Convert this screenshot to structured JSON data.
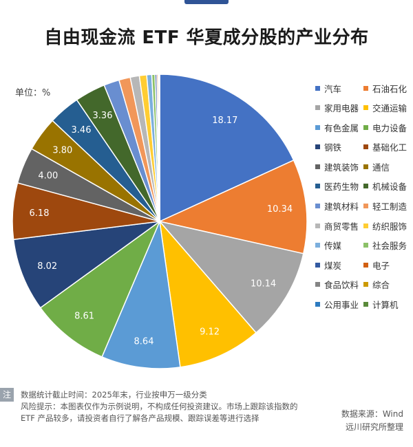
{
  "title": "自由现金流 ETF 华夏成分股的产业分布",
  "unit_label": "单位：%",
  "note_marker": "注",
  "notes": [
    "数据统计截止时间：2025年末，行业按申万一级分类",
    "风险提示：本图表仅作为示例说明，不构成任何投资建议。市场上跟踪该指数的",
    "ETF 产品较多，请投资者自行了解各产品规模、跟踪误差等进行选择"
  ],
  "source": [
    "数据来源：Wind",
    "远川研究所整理"
  ],
  "chart_data": {
    "type": "pie",
    "title": "自由现金流 ETF 华夏成分股的产业分布",
    "unit": "单位：%",
    "legend_position": "right",
    "series": [
      {
        "name": "汽车",
        "value": 18.17,
        "color": "#4472c4",
        "label": "18.17"
      },
      {
        "name": "石油石化",
        "value": 10.34,
        "color": "#ed7d31",
        "label": "10.34"
      },
      {
        "name": "家用电器",
        "value": 10.14,
        "color": "#a5a5a5",
        "label": "10.14"
      },
      {
        "name": "交通运输",
        "value": 9.12,
        "color": "#ffc000",
        "label": "9.12"
      },
      {
        "name": "有色金属",
        "value": 8.64,
        "color": "#5b9bd5",
        "label": "8.64"
      },
      {
        "name": "电力设备",
        "value": 8.61,
        "color": "#70ad47",
        "label": "8.61"
      },
      {
        "name": "钢铁",
        "value": 8.02,
        "color": "#264478",
        "label": "8.02"
      },
      {
        "name": "基础化工",
        "value": 6.18,
        "color": "#9e480e",
        "label": "6.18"
      },
      {
        "name": "建筑装饰",
        "value": 4.0,
        "color": "#636363",
        "label": "4.00"
      },
      {
        "name": "通信",
        "value": 3.8,
        "color": "#997300",
        "label": "3.80"
      },
      {
        "name": "医药生物",
        "value": 3.46,
        "color": "#255e91",
        "label": "3.46"
      },
      {
        "name": "机械设备",
        "value": 3.36,
        "color": "#43682b",
        "label": "3.36"
      },
      {
        "name": "建筑材料",
        "value": 1.7,
        "color": "#698ed0",
        "label": ""
      },
      {
        "name": "轻工制造",
        "value": 1.25,
        "color": "#f1975a",
        "label": ""
      },
      {
        "name": "商贸零售",
        "value": 1.0,
        "color": "#b7b7b7",
        "label": ""
      },
      {
        "name": "纺织服饰",
        "value": 0.8,
        "color": "#ffcd33",
        "label": ""
      },
      {
        "name": "传媒",
        "value": 0.55,
        "color": "#7cafdd",
        "label": ""
      },
      {
        "name": "社会服务",
        "value": 0.35,
        "color": "#8cc168",
        "label": ""
      },
      {
        "name": "煤炭",
        "value": 0.2,
        "color": "#335aa1",
        "label": ""
      },
      {
        "name": "电子",
        "value": 0.15,
        "color": "#d26012",
        "label": ""
      },
      {
        "name": "食品饮料",
        "value": 0.08,
        "color": "#848484",
        "label": ""
      },
      {
        "name": "综合",
        "value": 0.05,
        "color": "#cc9a00",
        "label": ""
      },
      {
        "name": "公用事业",
        "value": 0.02,
        "color": "#2d7bc0",
        "label": ""
      },
      {
        "name": "计算机",
        "value": 0.01,
        "color": "#5a8a3a",
        "label": ""
      }
    ]
  }
}
